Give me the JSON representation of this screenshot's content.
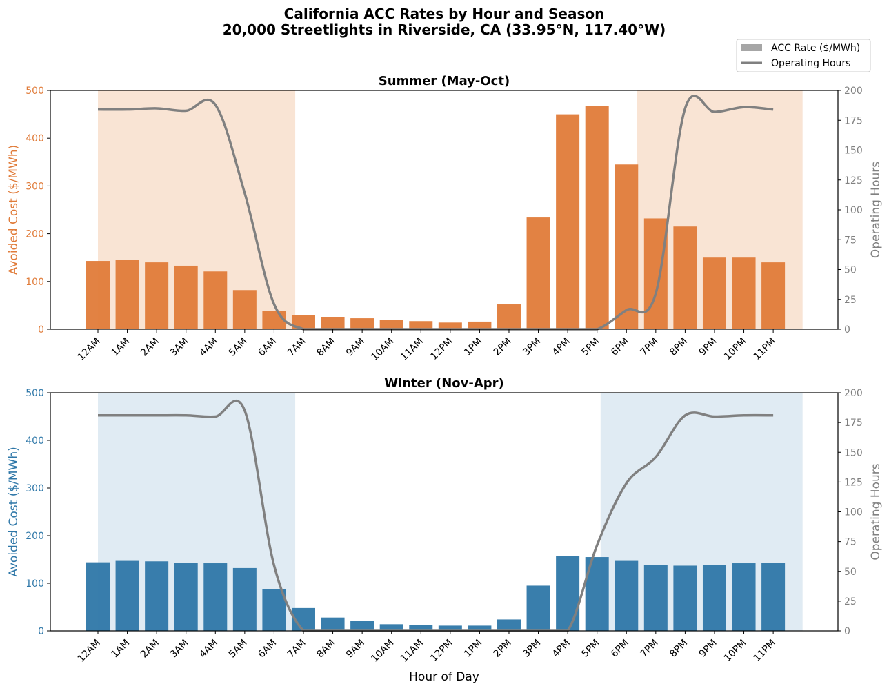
{
  "title_line1": "California ACC Rates by Hour and Season",
  "title_line2": "20,000 Streetlights in Riverside, CA (33.95°N, 117.40°W)",
  "legend": {
    "bar_label": "ACC Rate ($/MWh)",
    "line_label": "Operating Hours",
    "placement": "top-right"
  },
  "xlabel": "Hour of Day",
  "chart_data": [
    {
      "type": "bar",
      "title": "Summer (May-Oct)",
      "ylabel": "Avoided Cost ($/MWh)",
      "y2label": "Operating Hours",
      "ylim": [
        0,
        500
      ],
      "y2lim": [
        0,
        200
      ],
      "yticks": [
        0,
        100,
        200,
        300,
        400,
        500
      ],
      "y2ticks": [
        0,
        25,
        50,
        75,
        100,
        125,
        150,
        175,
        200
      ],
      "color": "#e07b39",
      "shade_color": "#f6d9c2",
      "line_color": "#808080",
      "categories": [
        "12AM",
        "1AM",
        "2AM",
        "3AM",
        "4AM",
        "5AM",
        "6AM",
        "7AM",
        "8AM",
        "9AM",
        "10AM",
        "11AM",
        "12PM",
        "1PM",
        "2PM",
        "3PM",
        "4PM",
        "5PM",
        "6PM",
        "7PM",
        "8PM",
        "9PM",
        "10PM",
        "11PM"
      ],
      "series": [
        {
          "name": "ACC Rate ($/MWh)",
          "values": [
            143,
            145,
            140,
            133,
            121,
            82,
            39,
            29,
            26,
            23,
            20,
            17,
            14,
            16,
            52,
            234,
            450,
            467,
            345,
            232,
            215,
            150,
            150,
            140
          ]
        },
        {
          "name": "Operating Hours",
          "axis": "right",
          "type": "line",
          "values": [
            184,
            184,
            185,
            183,
            188,
            114,
            21,
            0,
            0,
            0,
            0,
            0,
            0,
            0,
            0,
            0,
            0,
            0,
            16,
            30,
            185,
            182,
            186,
            184
          ]
        }
      ],
      "shaded_hours": [
        [
          0,
          6.72
        ],
        [
          18.37,
          24
        ]
      ]
    },
    {
      "type": "bar",
      "title": "Winter (Nov-Apr)",
      "ylabel": "Avoided Cost ($/MWh)",
      "y2label": "Operating Hours",
      "ylim": [
        0,
        500
      ],
      "y2lim": [
        0,
        200
      ],
      "yticks": [
        0,
        100,
        200,
        300,
        400,
        500
      ],
      "y2ticks": [
        0,
        25,
        50,
        75,
        100,
        125,
        150,
        175,
        200
      ],
      "color": "#2e77a8",
      "shade_color": "#d3e3ee",
      "line_color": "#808080",
      "categories": [
        "12AM",
        "1AM",
        "2AM",
        "3AM",
        "4AM",
        "5AM",
        "6AM",
        "7AM",
        "8AM",
        "9AM",
        "10AM",
        "11AM",
        "12PM",
        "1PM",
        "2PM",
        "3PM",
        "4PM",
        "5PM",
        "6PM",
        "7PM",
        "8PM",
        "9PM",
        "10PM",
        "11PM"
      ],
      "series": [
        {
          "name": "ACC Rate ($/MWh)",
          "values": [
            144,
            147,
            146,
            143,
            142,
            132,
            88,
            48,
            28,
            21,
            14,
            13,
            11,
            11,
            24,
            95,
            157,
            155,
            147,
            139,
            137,
            139,
            142,
            143
          ]
        },
        {
          "name": "Operating Hours",
          "axis": "right",
          "type": "line",
          "values": [
            181,
            181,
            181,
            181,
            180,
            185,
            55,
            0,
            0,
            0,
            0,
            0,
            0,
            0,
            0,
            0,
            0,
            72,
            124,
            146,
            181,
            180,
            181,
            181
          ]
        }
      ],
      "shaded_hours": [
        [
          0,
          6.72
        ],
        [
          17.12,
          24
        ]
      ]
    }
  ]
}
